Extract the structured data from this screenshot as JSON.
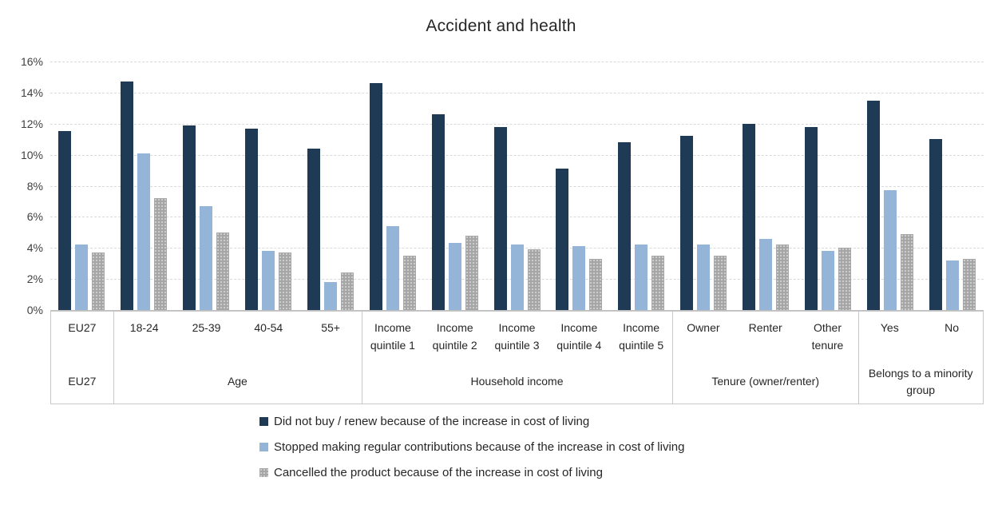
{
  "title": "Accident and health",
  "colors": {
    "series_dark_navy": "#1f3a54",
    "series_light_blue": "#94b5d8",
    "series_gray": "#a6a6a6",
    "gridline": "#d9d9d9",
    "axis_border": "#c9c9c9",
    "text": "#262626"
  },
  "chart_data": {
    "type": "bar",
    "title": "Accident and health",
    "xlabel": "",
    "ylabel": "",
    "grid": true,
    "legend_position": "bottom",
    "y_axis": {
      "min": 0,
      "max": 16,
      "step": 2,
      "unit": "%",
      "tick_labels": [
        "0%",
        "2%",
        "4%",
        "6%",
        "8%",
        "10%",
        "12%",
        "14%",
        "16%"
      ]
    },
    "groups": [
      {
        "label": "EU27",
        "categories": [
          "EU27"
        ]
      },
      {
        "label": "Age",
        "categories": [
          "18-24",
          "25-39",
          "40-54",
          "55+"
        ]
      },
      {
        "label": "Household income",
        "categories": [
          "Income quintile 1",
          "Income quintile 2",
          "Income quintile 3",
          "Income quintile 4",
          "Income quintile 5"
        ]
      },
      {
        "label": "Tenure (owner/renter)",
        "categories": [
          "Owner",
          "Renter",
          "Other tenure"
        ]
      },
      {
        "label": "Belongs to a minority group",
        "categories": [
          "Yes",
          "No"
        ]
      }
    ],
    "categories": [
      "EU27",
      "18-24",
      "25-39",
      "40-54",
      "55+",
      "Income quintile 1",
      "Income quintile 2",
      "Income quintile 3",
      "Income quintile 4",
      "Income quintile 5",
      "Owner",
      "Renter",
      "Other tenure",
      "Yes",
      "No"
    ],
    "series": [
      {
        "name": "Did not buy / renew because of the increase in cost of living",
        "color": "#1f3a54",
        "pattern": "solid",
        "values": [
          11.5,
          14.7,
          11.9,
          11.7,
          10.4,
          14.6,
          12.6,
          11.8,
          9.1,
          10.8,
          11.2,
          12.0,
          11.8,
          13.5,
          11.0
        ]
      },
      {
        "name": "Stopped making regular contributions because of the increase in cost of living",
        "color": "#94b5d8",
        "pattern": "solid",
        "values": [
          4.2,
          10.1,
          6.7,
          3.8,
          1.8,
          5.4,
          4.3,
          4.2,
          4.1,
          4.2,
          4.2,
          4.6,
          3.8,
          7.7,
          3.2
        ]
      },
      {
        "name": "Cancelled the product because of the increase in cost of living",
        "color": "#a6a6a6",
        "pattern": "dotted",
        "values": [
          3.7,
          7.2,
          5.0,
          3.7,
          2.4,
          3.5,
          4.8,
          3.9,
          3.3,
          3.5,
          3.5,
          4.2,
          4.0,
          4.9,
          3.3
        ]
      }
    ]
  }
}
